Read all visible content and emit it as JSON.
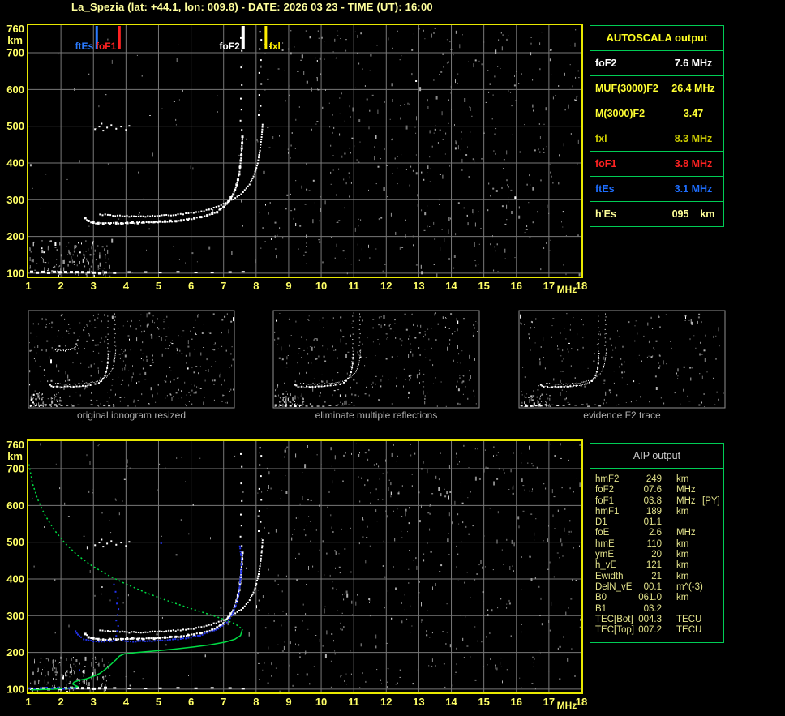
{
  "title": "La_Spezia (lat: +44.1, lon: 009.8) - DATE: 2026 03 23 - TIME (UT): 16:00",
  "colors": {
    "background": "#000000",
    "axis_labels_yellow": "#ffff66",
    "plot_border_yellow": "#e8e800",
    "grid_gray": "#787878",
    "trace_white": "#ffffff",
    "profile_green": "#00dd44",
    "autoscaled_trace_blue": "#2233ee",
    "table_border_green": "#00cc55",
    "caption_gray": "#b0b0b0",
    "title_yellow": "#ffff9c",
    "aip_text": "#e4e48c",
    "aip_header": "#cfcfcf",
    "autoscala_header": "#ffff22"
  },
  "autoscala": {
    "header": "AUTOSCALA output",
    "rows": [
      {
        "label": "foF2",
        "value": "7.6 MHz",
        "color": "#ffffff"
      },
      {
        "label": "MUF(3000)F2",
        "value": "26.4 MHz",
        "color": "#ffff33"
      },
      {
        "label": "M(3000)F2",
        "value": "3.47",
        "color": "#ffff33"
      },
      {
        "label": "fxl",
        "value": "8.3 MHz",
        "color": "#cccc00"
      },
      {
        "label": "foF1",
        "value": "3.8 MHz",
        "color": "#ff2222"
      },
      {
        "label": "ftEs",
        "value": "3.1 MHz",
        "color": "#1e6eff"
      },
      {
        "label": "h'Es",
        "value": "095    km",
        "color": "#ffff99"
      }
    ]
  },
  "aip": {
    "header": "AIP output",
    "rows": [
      {
        "label": "hmF2",
        "value": "249",
        "unit": "km",
        "extra": ""
      },
      {
        "label": "foF2",
        "value": "07.6",
        "unit": "MHz",
        "extra": ""
      },
      {
        "label": "foF1",
        "value": "03.8",
        "unit": "MHz",
        "extra": "[PY]"
      },
      {
        "label": "hmF1",
        "value": "189",
        "unit": "km",
        "extra": ""
      },
      {
        "label": "D1",
        "value": "01.1",
        "unit": "",
        "extra": ""
      },
      {
        "label": "foE",
        "value": "2.6",
        "unit": "MHz",
        "extra": ""
      },
      {
        "label": "hmE",
        "value": "110",
        "unit": "km",
        "extra": ""
      },
      {
        "label": "ymE",
        "value": "20",
        "unit": "km",
        "extra": ""
      },
      {
        "label": "h_vE",
        "value": "121",
        "unit": "km",
        "extra": ""
      },
      {
        "label": "Ewidth",
        "value": "21",
        "unit": "km",
        "extra": ""
      },
      {
        "label": "DelN_vE",
        "value": "00.1",
        "unit": "m^(-3)",
        "extra": ""
      },
      {
        "label": "B0",
        "value": "061.0",
        "unit": "km",
        "extra": ""
      },
      {
        "label": "B1",
        "value": "03.2",
        "unit": "",
        "extra": ""
      },
      {
        "label": "TEC[Bot]",
        "value": "004.3",
        "unit": "TECU",
        "extra": ""
      },
      {
        "label": "TEC[Top]",
        "value": "007.2",
        "unit": "TECU",
        "extra": ""
      }
    ]
  },
  "thumbnails": [
    {
      "caption": "original ionogram resized"
    },
    {
      "caption": "eliminate multiple reflections"
    },
    {
      "caption": "evidence F2 trace"
    }
  ],
  "chart_data": {
    "type": "scatter",
    "x_axis": {
      "label": "MHz",
      "range": [
        1,
        18
      ],
      "ticks": [
        1,
        2,
        3,
        4,
        5,
        6,
        7,
        8,
        9,
        10,
        11,
        12,
        13,
        14,
        15,
        16,
        17,
        18
      ]
    },
    "y_axis": {
      "label": "km",
      "range": [
        91,
        775
      ],
      "top_edge_label": 760,
      "ticks": [
        100,
        200,
        300,
        400,
        500,
        600,
        700
      ]
    },
    "markers": [
      {
        "label": "ftEs",
        "freq_mhz": 3.1,
        "color": "#2b7bff",
        "side": "left"
      },
      {
        "label": "foF1",
        "freq_mhz": 3.8,
        "color": "#ff2222",
        "side": "left"
      },
      {
        "label": "foF2",
        "freq_mhz": 7.6,
        "color": "#ffffff",
        "side": "left"
      },
      {
        "label": "fxl",
        "freq_mhz": 8.3,
        "color": "#ffee00",
        "side": "right"
      }
    ],
    "ionogram_traces": {
      "o_trace": [
        [
          2.75,
          250
        ],
        [
          2.85,
          242
        ],
        [
          3.0,
          237
        ],
        [
          3.3,
          235
        ],
        [
          3.7,
          236
        ],
        [
          4.2,
          237
        ],
        [
          4.7,
          238
        ],
        [
          5.2,
          240
        ],
        [
          5.7,
          244
        ],
        [
          6.1,
          249
        ],
        [
          6.5,
          257
        ],
        [
          6.8,
          267
        ],
        [
          7.0,
          280
        ],
        [
          7.15,
          295
        ],
        [
          7.3,
          315
        ],
        [
          7.4,
          340
        ],
        [
          7.48,
          370
        ],
        [
          7.53,
          405
        ],
        [
          7.56,
          440
        ],
        [
          7.58,
          470
        ]
      ],
      "x_trace": [
        [
          3.2,
          260
        ],
        [
          3.6,
          257
        ],
        [
          4.1,
          255
        ],
        [
          4.6,
          255
        ],
        [
          5.1,
          257
        ],
        [
          5.6,
          260
        ],
        [
          6.0,
          264
        ],
        [
          6.4,
          270
        ],
        [
          6.7,
          278
        ],
        [
          7.0,
          288
        ],
        [
          7.3,
          302
        ],
        [
          7.6,
          320
        ],
        [
          7.8,
          342
        ],
        [
          7.95,
          370
        ],
        [
          8.05,
          400
        ],
        [
          8.12,
          435
        ],
        [
          8.17,
          470
        ],
        [
          8.2,
          505
        ]
      ],
      "x_asymptote_dots": [
        [
          8.08,
          530
        ],
        [
          8.14,
          555
        ],
        [
          8.1,
          585
        ],
        [
          8.16,
          615
        ],
        [
          8.1,
          645
        ],
        [
          8.15,
          680
        ],
        [
          8.11,
          710
        ],
        [
          8.16,
          735
        ],
        [
          8.12,
          757
        ]
      ],
      "o_asymptote_dots": [
        [
          7.56,
          490
        ],
        [
          7.52,
          515
        ],
        [
          7.55,
          545
        ],
        [
          7.53,
          575
        ],
        [
          7.56,
          612
        ],
        [
          7.54,
          660
        ],
        [
          7.56,
          705
        ],
        [
          7.53,
          740
        ]
      ],
      "second_hop_dots": [
        [
          3.05,
          492
        ],
        [
          3.18,
          499
        ],
        [
          3.3,
          488
        ],
        [
          3.42,
          496
        ],
        [
          3.55,
          503
        ],
        [
          3.7,
          493
        ],
        [
          3.85,
          499
        ],
        [
          4.0,
          490
        ],
        [
          4.1,
          501
        ],
        [
          3.25,
          507
        ]
      ],
      "second_hop_arc": [
        [
          2.9,
          515
        ],
        [
          3.2,
          502
        ],
        [
          3.6,
          496
        ],
        [
          4.0,
          497
        ],
        [
          4.4,
          503
        ],
        [
          4.75,
          515
        ],
        [
          5.0,
          530
        ]
      ],
      "es_layer": {
        "height_km": 102,
        "dense_segments_mhz": [
          [
            1.05,
            3.35
          ]
        ],
        "sparse_segments_mhz": [
          [
            3.6,
            3.75
          ],
          [
            4.05,
            4.2
          ],
          [
            4.55,
            4.68
          ],
          [
            5.0,
            5.12
          ],
          [
            5.55,
            5.68
          ],
          [
            6.1,
            6.22
          ],
          [
            6.6,
            6.72
          ],
          [
            7.15,
            7.28
          ],
          [
            7.55,
            7.65
          ]
        ]
      }
    },
    "autoscaled_trace_blue": {
      "height_km": 103,
      "es_segments_mhz": [
        [
          1.0,
          2.5
        ]
      ],
      "main": [
        [
          2.45,
          258
        ],
        [
          2.52,
          248
        ],
        [
          2.62,
          240
        ],
        [
          2.78,
          234
        ],
        [
          3.0,
          231
        ],
        [
          3.25,
          230
        ],
        [
          3.5,
          231
        ],
        [
          3.65,
          233
        ]
      ],
      "main2": [
        [
          3.9,
          232
        ],
        [
          4.3,
          230
        ],
        [
          4.8,
          231
        ],
        [
          5.2,
          233
        ],
        [
          5.6,
          236
        ],
        [
          6.0,
          241
        ],
        [
          6.35,
          248
        ],
        [
          6.65,
          257
        ],
        [
          6.9,
          268
        ],
        [
          7.1,
          282
        ],
        [
          7.25,
          300
        ],
        [
          7.35,
          322
        ],
        [
          7.45,
          350
        ],
        [
          7.5,
          382
        ],
        [
          7.53,
          415
        ],
        [
          7.56,
          450
        ],
        [
          7.5,
          488
        ]
      ],
      "f1_cusp_dots": [
        [
          3.7,
          245
        ],
        [
          3.73,
          258
        ],
        [
          3.76,
          272
        ],
        [
          3.7,
          287
        ],
        [
          3.74,
          302
        ],
        [
          3.77,
          318
        ],
        [
          3.72,
          333
        ],
        [
          3.75,
          348
        ],
        [
          3.68,
          365
        ],
        [
          3.63,
          385
        ],
        [
          2.57,
          152
        ],
        [
          5.08,
          497
        ]
      ]
    },
    "electron_density_profile_green": {
      "topside_dashed": [
        [
          1.02,
          712
        ],
        [
          1.12,
          662
        ],
        [
          1.28,
          618
        ],
        [
          1.5,
          575
        ],
        [
          1.78,
          535
        ],
        [
          2.12,
          498
        ],
        [
          2.5,
          465
        ],
        [
          2.95,
          436
        ],
        [
          3.45,
          410
        ],
        [
          4.0,
          386
        ],
        [
          4.6,
          363
        ],
        [
          5.2,
          343
        ],
        [
          5.8,
          325
        ],
        [
          6.4,
          308
        ],
        [
          6.95,
          292
        ],
        [
          7.35,
          278
        ],
        [
          7.58,
          263
        ]
      ],
      "bottomside_solid": [
        [
          7.58,
          263
        ],
        [
          7.52,
          246
        ],
        [
          7.35,
          236
        ],
        [
          7.05,
          228
        ],
        [
          6.6,
          221
        ],
        [
          6.1,
          215
        ],
        [
          5.5,
          209
        ],
        [
          4.9,
          204
        ],
        [
          4.35,
          200
        ],
        [
          3.95,
          196
        ],
        [
          3.8,
          190
        ],
        [
          3.68,
          179
        ],
        [
          3.52,
          166
        ],
        [
          3.38,
          155
        ],
        [
          3.2,
          143
        ],
        [
          3.0,
          135
        ],
        [
          2.78,
          128
        ],
        [
          2.55,
          124
        ],
        [
          2.4,
          119
        ],
        [
          2.36,
          114
        ],
        [
          2.45,
          110
        ],
        [
          2.52,
          107
        ],
        [
          2.4,
          104
        ],
        [
          2.1,
          102
        ],
        [
          1.8,
          100
        ],
        [
          1.4,
          99
        ],
        [
          1.08,
          98
        ]
      ]
    }
  }
}
